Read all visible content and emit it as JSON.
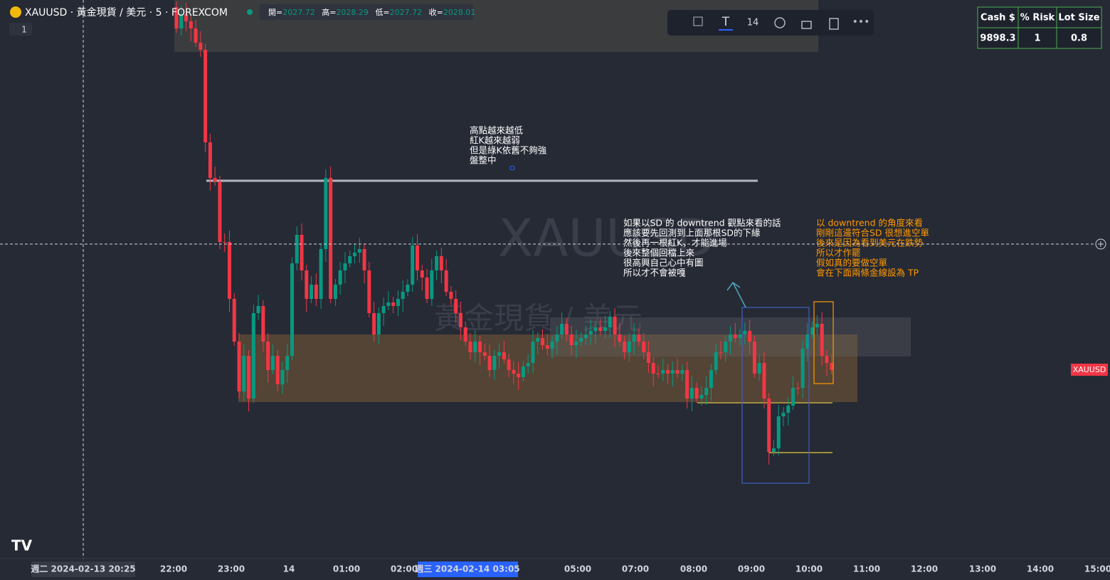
{
  "header": {
    "symbol": "XAUUSD · 黃金現貨 / 美元 · 5 · FOREXCOM",
    "open": "開=",
    "open_value": "2027.72",
    "high": "高=",
    "high_value": "2028.29",
    "low": "低=",
    "low_value": "2027.72",
    "close": "收=",
    "close_value": "2028.01",
    "counter": "1"
  },
  "toolbar": {
    "font_size": "14"
  },
  "table": {
    "headers": [
      "Cash $",
      "% Risk",
      "Lot Size"
    ],
    "row": [
      9898.3,
      1,
      0.8
    ]
  },
  "watermark": {
    "symbol": "XAUUSD",
    "name": "黃金現貨 / 美元"
  },
  "annotations": [
    {
      "lines": [
        "高點越來越低",
        "紅K越來越弱",
        "但是綠K依舊不夠強",
        "盤整中"
      ]
    },
    {
      "lines": [
        "如果以SD 的 downtrend 觀點來看的話",
        "應該要先回測到上面那根SD的下緣",
        "然後再一根紅K，才能進場",
        "後來整個回檔上來",
        "很高興自己心中有圖",
        "所以才不會被嘎"
      ]
    },
    {
      "lines": [
        "以 downtrend 的角度來看",
        "剛剛這邊符合SD 很想進空單",
        "後來是因為看到美元在跌勢",
        "所以才作罷",
        "假如真的要做空單",
        "會在下面兩條金線設為 TP"
      ]
    }
  ],
  "price_tag": "XAUUSD",
  "time_axis": {
    "crosshair_start": "週二 2024-02-13   20:25",
    "crosshair_current": "週三 2024-02-14   03:05",
    "labels": [
      "22:00",
      "23:00",
      "14",
      "01:00",
      "02:00",
      "05:00",
      "07:00",
      "08:00",
      "09:00",
      "10:00",
      "11:00",
      "12:00",
      "13:00",
      "14:00",
      "15:00"
    ]
  }
}
